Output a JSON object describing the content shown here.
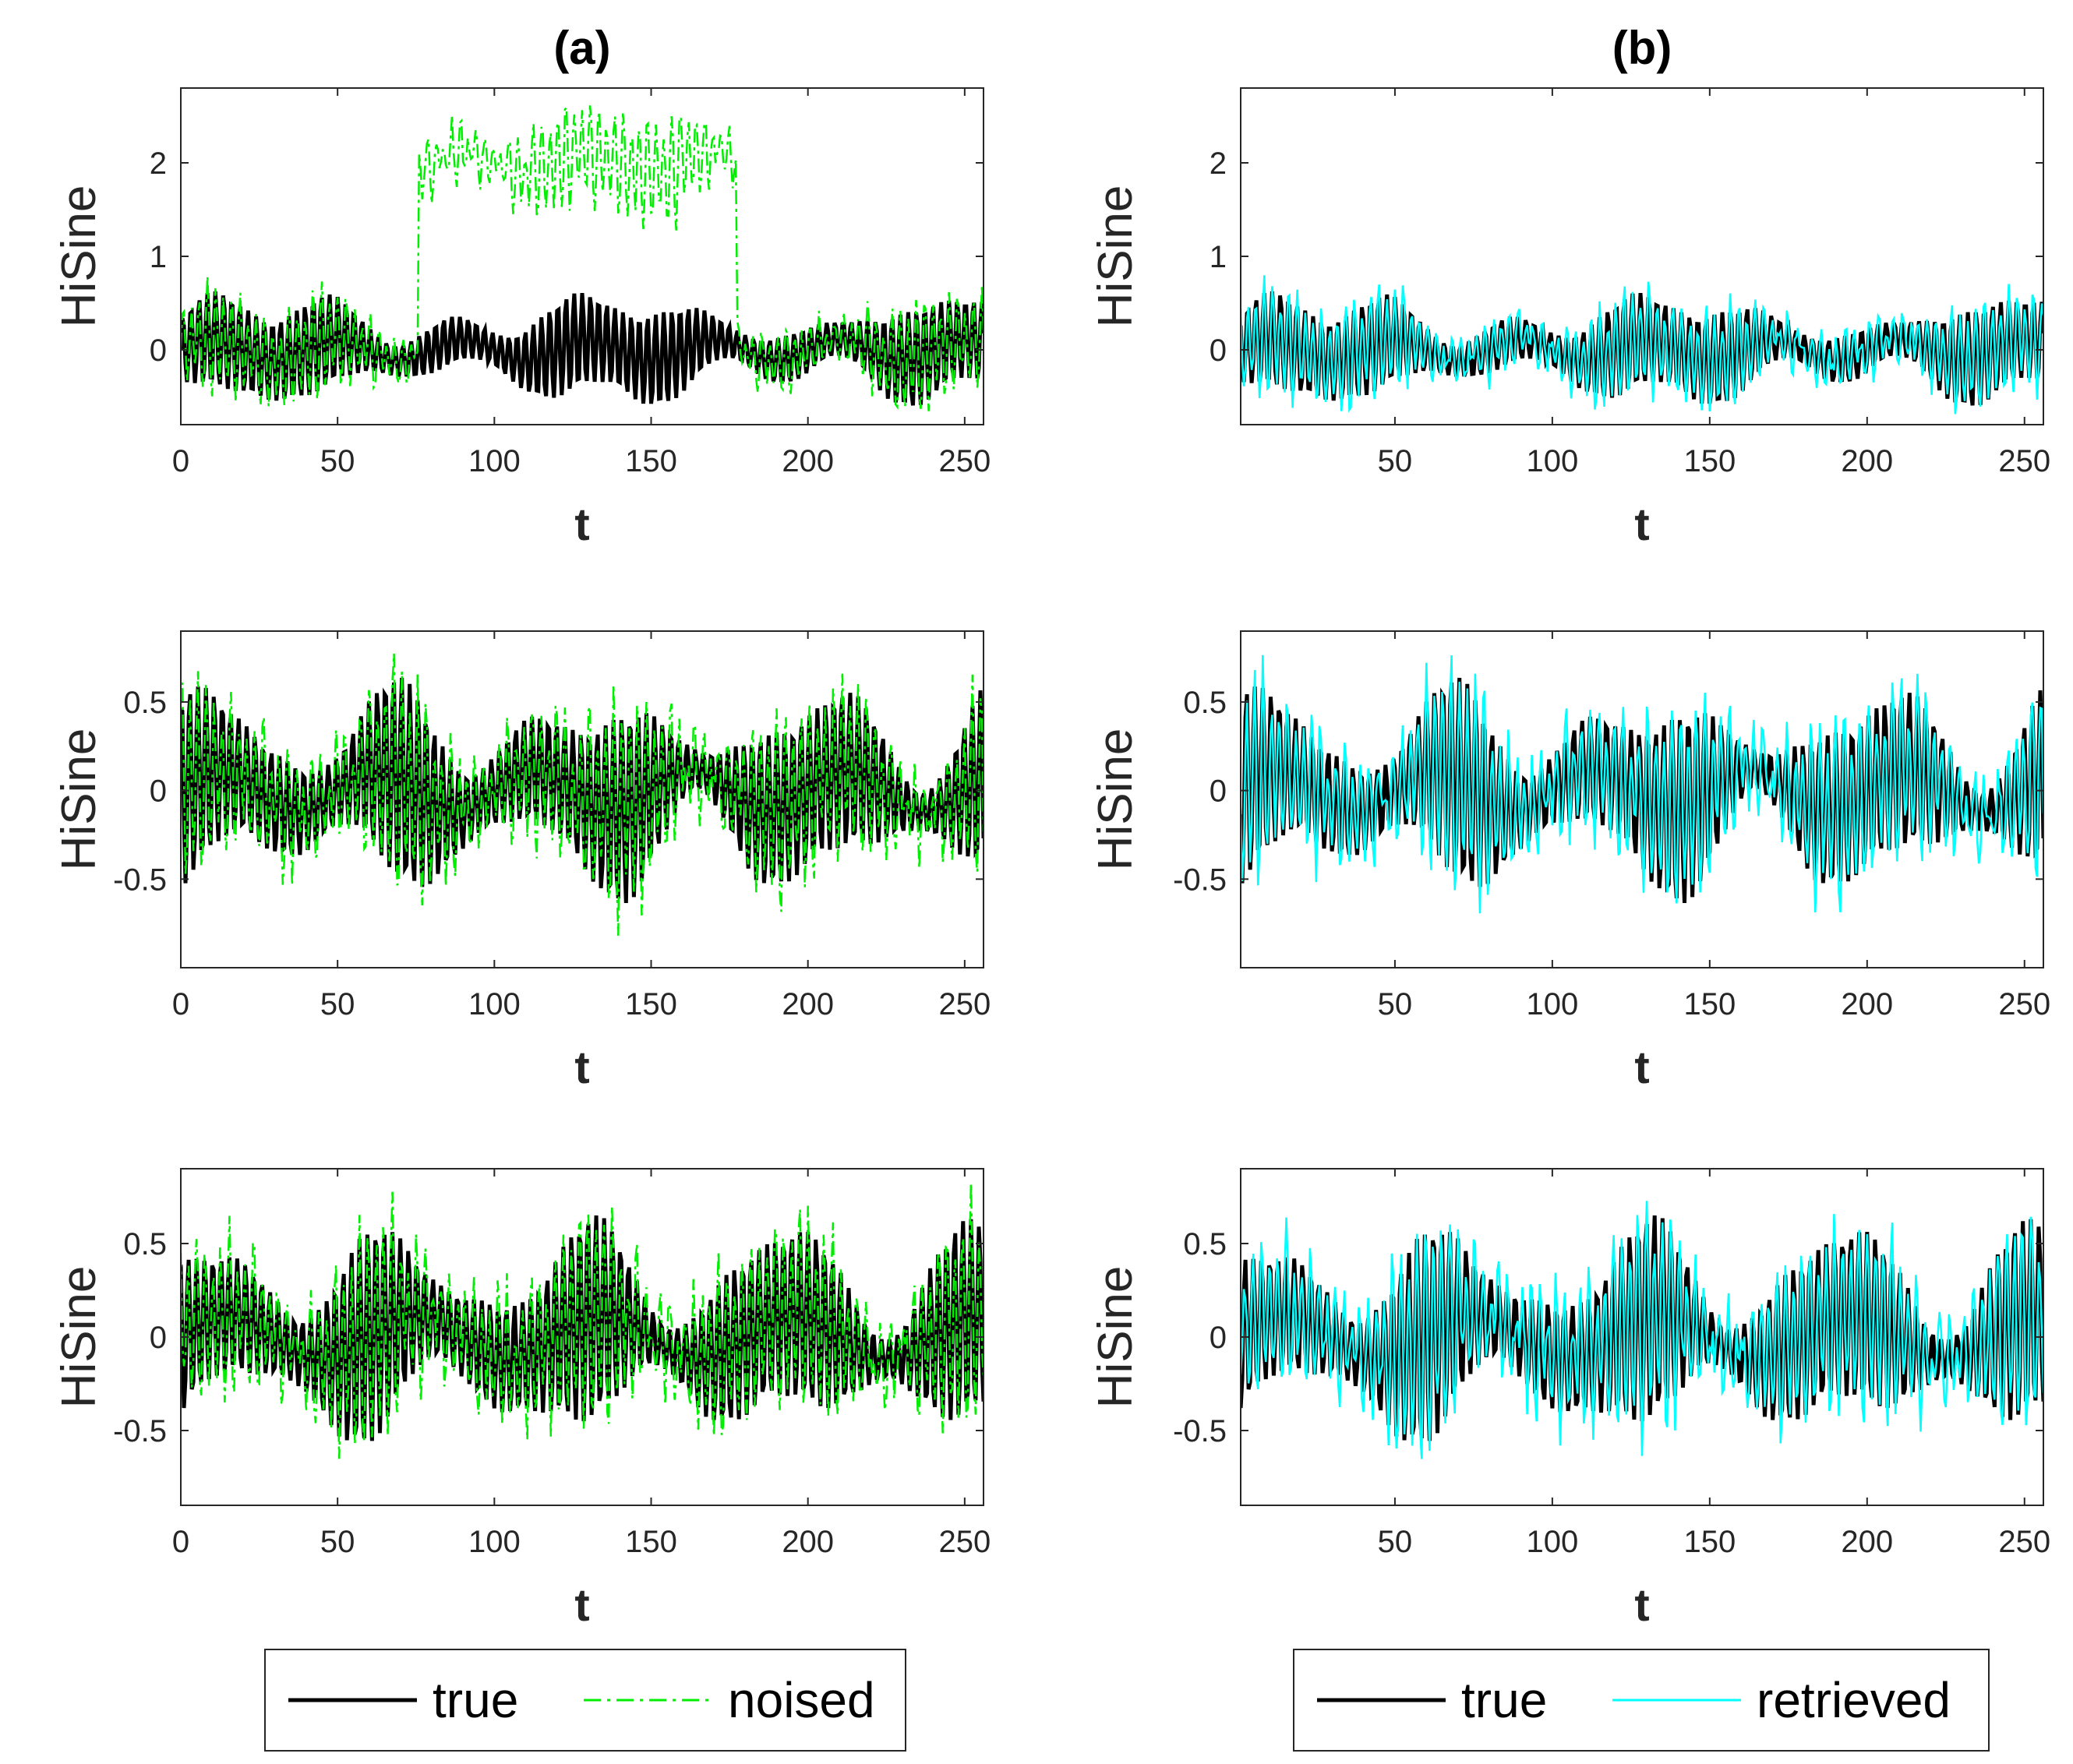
{
  "figure": {
    "column_titles": [
      "(a)",
      "(b)"
    ],
    "colors": {
      "true": "#000000",
      "noised": "#00ee00",
      "retrieved": "#00ffff",
      "axis": "#262626"
    }
  },
  "legends": [
    {
      "entries": [
        {
          "label": "true",
          "style": "solid",
          "color": "#000000"
        },
        {
          "label": "noised",
          "style": "dashdot",
          "color": "#00ee00"
        }
      ]
    },
    {
      "entries": [
        {
          "label": "true",
          "style": "solid",
          "color": "#000000"
        },
        {
          "label": "retrieved",
          "style": "solid",
          "color": "#00ffff"
        }
      ]
    }
  ],
  "chart_data": [
    {
      "type": "line",
      "panel": "a1",
      "title": "(a)",
      "xlabel": "t",
      "ylabel": "HiSine",
      "xlim": [
        0,
        256
      ],
      "ylim": [
        -0.8,
        2.8
      ],
      "xticks": [
        0,
        50,
        100,
        150,
        200,
        250
      ],
      "yticks": [
        0,
        1,
        2
      ],
      "series": [
        {
          "name": "true",
          "style": "solid",
          "description": "HiSine signal, amplitude ~0.3-0.7 around 0, n=256"
        },
        {
          "name": "noised",
          "style": "dashdot",
          "description": "true + noise; shifted by ~+2 for t in [76,177]"
        }
      ]
    },
    {
      "type": "line",
      "panel": "b1",
      "title": "(b)",
      "xlabel": "t",
      "ylabel": "HiSine",
      "xlim": [
        1,
        256
      ],
      "ylim": [
        -0.8,
        2.8
      ],
      "xticks": [
        50,
        100,
        150,
        200,
        250
      ],
      "yticks": [
        0,
        1,
        2
      ],
      "series": [
        {
          "name": "true",
          "style": "solid"
        },
        {
          "name": "retrieved",
          "style": "solid"
        }
      ]
    },
    {
      "type": "line",
      "panel": "a2",
      "xlabel": "t",
      "ylabel": "HiSine",
      "xlim": [
        0,
        256
      ],
      "ylim": [
        -1.0,
        0.9
      ],
      "xticks": [
        0,
        50,
        100,
        150,
        200,
        250
      ],
      "yticks": [
        -0.5,
        0,
        0.5
      ],
      "series": [
        {
          "name": "true",
          "style": "solid"
        },
        {
          "name": "noised",
          "style": "dashdot"
        }
      ]
    },
    {
      "type": "line",
      "panel": "b2",
      "xlabel": "t",
      "ylabel": "HiSine",
      "xlim": [
        1,
        256
      ],
      "ylim": [
        -1.0,
        0.9
      ],
      "xticks": [
        50,
        100,
        150,
        200,
        250
      ],
      "yticks": [
        -0.5,
        0,
        0.5
      ],
      "series": [
        {
          "name": "true",
          "style": "solid"
        },
        {
          "name": "retrieved",
          "style": "solid"
        }
      ]
    },
    {
      "type": "line",
      "panel": "a3",
      "xlabel": "t",
      "ylabel": "HiSine",
      "xlim": [
        0,
        256
      ],
      "ylim": [
        -0.9,
        0.9
      ],
      "xticks": [
        0,
        50,
        100,
        150,
        200,
        250
      ],
      "yticks": [
        -0.5,
        0,
        0.5
      ],
      "series": [
        {
          "name": "true",
          "style": "solid"
        },
        {
          "name": "noised",
          "style": "dashdot"
        }
      ]
    },
    {
      "type": "line",
      "panel": "b3",
      "xlabel": "t",
      "ylabel": "HiSine",
      "xlim": [
        1,
        256
      ],
      "ylim": [
        -0.9,
        0.9
      ],
      "xticks": [
        50,
        100,
        150,
        200,
        250
      ],
      "yticks": [
        -0.5,
        0,
        0.5
      ],
      "series": [
        {
          "name": "true",
          "style": "solid"
        },
        {
          "name": "retrieved",
          "style": "solid"
        }
      ]
    }
  ]
}
